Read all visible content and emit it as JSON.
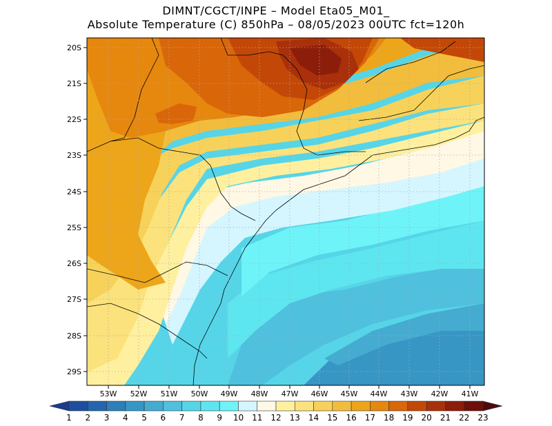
{
  "header": {
    "line1": "DIMNT/CGCT/INPE –  Model Eta05_M01_",
    "line2": "Absolute Temperature (C) 850hPa –  08/05/2023 00UTC fct=120h"
  },
  "axes": {
    "lat_labels": [
      "20S",
      "21S",
      "22S",
      "23S",
      "24S",
      "25S",
      "26S",
      "27S",
      "28S",
      "29S"
    ],
    "lon_labels": [
      "53W",
      "52W",
      "51W",
      "50W",
      "49W",
      "48W",
      "47W",
      "46W",
      "45W",
      "44W",
      "43W",
      "42W",
      "41W"
    ]
  },
  "colorbar": {
    "labels": [
      "1",
      "2",
      "3",
      "4",
      "5",
      "6",
      "7",
      "8",
      "9",
      "10",
      "11",
      "12",
      "13",
      "14",
      "15",
      "16",
      "17",
      "18",
      "19",
      "20",
      "21",
      "22",
      "23"
    ],
    "colors": [
      "#1e3c8c",
      "#1e4f9f",
      "#2466ad",
      "#2c7fb8",
      "#3796c4",
      "#45abd0",
      "#4fc0dd",
      "#56d5e8",
      "#5ee6f0",
      "#6ef4f8",
      "#d5f6ff",
      "#fff8e5",
      "#fff0a0",
      "#fbe27c",
      "#f7d25a",
      "#f2bd3c",
      "#eda51a",
      "#e6870e",
      "#d96609",
      "#c34807",
      "#a9300a",
      "#8c1d0a",
      "#6e0f0a",
      "#4e0a10"
    ]
  },
  "map": {
    "fill_colors": {
      "darkest": "#8c1d0a",
      "dark": "#c34807",
      "orange": "#d96609",
      "orange2": "#e6870e",
      "amber": "#eda51a",
      "gold": "#f2bd3c",
      "yellow": "#f7d25a",
      "paleyellow": "#fbe27c",
      "cream": "#fff0a0",
      "ivory": "#fff8e5",
      "pale": "#d5f6ff",
      "cyan": "#6ef4f8",
      "cyan2": "#5ee6f0",
      "teal": "#56d5e8",
      "sky": "#4fc0dd",
      "blue": "#45abd0",
      "deep": "#3796c4"
    }
  }
}
